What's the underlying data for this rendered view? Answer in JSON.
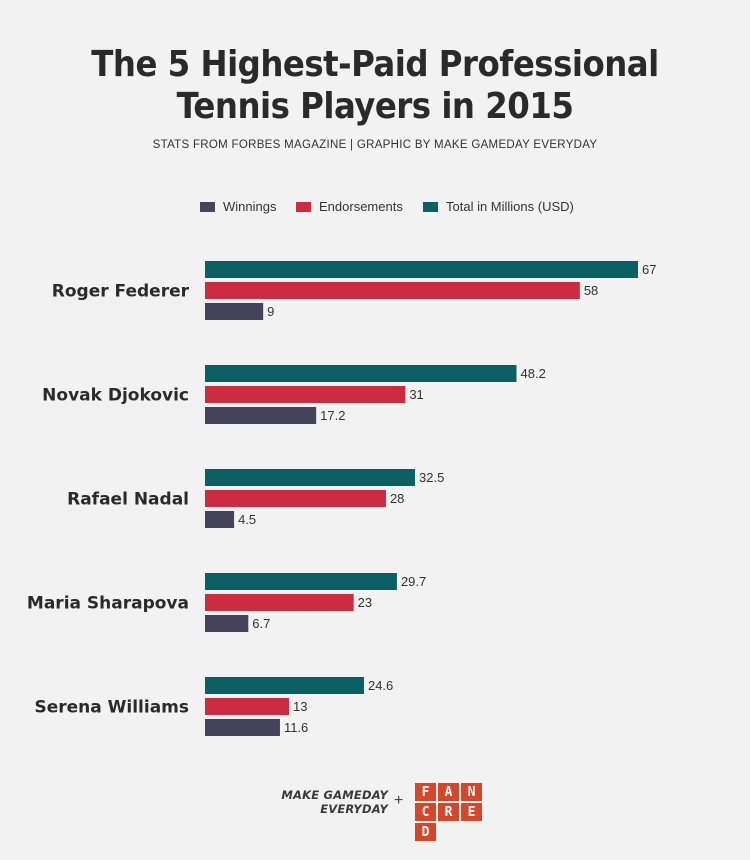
{
  "title": [
    "The 5 Highest-Paid Professional",
    "Tennis Players in 2015"
  ],
  "subtitle": "STATS FROM FORBES MAGAZINE  |  GRAPHIC BY MAKE GAMEDAY EVERYDAY",
  "colors": {
    "winnings": "#44435a",
    "endorsements": "#cc2b40",
    "total": "#0b6066",
    "background": "#f2f2f2"
  },
  "chart_data": {
    "type": "bar",
    "orientation": "horizontal",
    "title": "The 5 Highest-Paid Professional Tennis Players in 2015",
    "subtitle": "STATS FROM FORBES MAGAZINE  |  GRAPHIC BY MAKE GAMEDAY EVERYDAY",
    "categories": [
      "Roger Federer",
      "Novak Djokovic",
      "Rafael Nadal",
      "Maria Sharapova",
      "Serena Williams"
    ],
    "series": [
      {
        "name": "Total in Millions (USD)",
        "color": "#0b6066",
        "values": [
          67,
          48.2,
          32.5,
          29.7,
          24.6
        ]
      },
      {
        "name": "Endorsements",
        "color": "#cc2b40",
        "values": [
          58,
          31,
          28,
          23,
          13
        ]
      },
      {
        "name": "Winnings",
        "color": "#44435a",
        "values": [
          9,
          17.2,
          4.5,
          6.7,
          11.6
        ]
      }
    ],
    "legend": [
      {
        "label": "Winnings",
        "color": "#44435a"
      },
      {
        "label": "Endorsements",
        "color": "#cc2b40"
      },
      {
        "label": "Total in Millions (USD)",
        "color": "#0b6066"
      }
    ],
    "legend_position": "top",
    "xlim": [
      0,
      67
    ],
    "grid": false,
    "data_labels": true
  },
  "footer": {
    "brand_line1": "MAKE GAMEDAY",
    "brand_line2": "EVERYDAY",
    "plus": "+",
    "logo_letters": [
      "F",
      "A",
      "N",
      "C",
      "R",
      "E",
      "D"
    ]
  }
}
